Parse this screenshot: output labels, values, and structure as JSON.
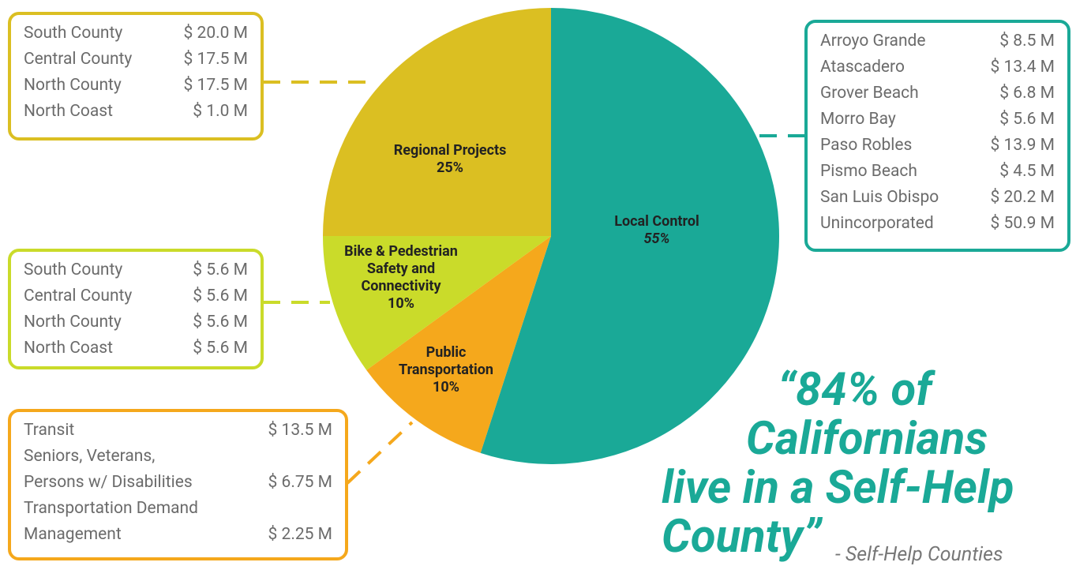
{
  "chart_data": {
    "type": "pie",
    "categories": [
      "Local Control",
      "Public Transportation",
      "Bike & Pedestrian Safety and Connectivity",
      "Regional Projects"
    ],
    "values": [
      55,
      10,
      10,
      25
    ],
    "value_labels": [
      "55%",
      "10%",
      "10%",
      "25%"
    ],
    "colors": [
      "#1aa997",
      "#f5a81c",
      "#cadb2a",
      "#dbbf22"
    ]
  },
  "breakdowns": [
    {
      "rows": [
        [
          "South County",
          "$ 20.0 M"
        ],
        [
          "Central County",
          "$ 17.5 M"
        ],
        [
          "North County",
          "$ 17.5 M"
        ],
        [
          "North Coast",
          "$ 1.0 M"
        ]
      ]
    },
    {
      "rows": [
        [
          "South County",
          "$ 5.6 M"
        ],
        [
          "Central County",
          "$ 5.6 M"
        ],
        [
          "North County",
          "$ 5.6 M"
        ],
        [
          "North Coast",
          "$ 5.6 M"
        ]
      ]
    },
    {
      "rows": [
        [
          "Transit",
          "$ 13.5 M"
        ],
        [
          "Seniors, Veterans,"
        ],
        [
          "Persons w/ Disabilities",
          "$ 6.75 M"
        ],
        [
          "Transportation Demand"
        ],
        [
          "Management",
          "$ 2.25 M"
        ]
      ]
    },
    {
      "rows": [
        [
          "Arroyo Grande",
          "$ 8.5 M"
        ],
        [
          "Atascadero",
          "$ 13.4 M"
        ],
        [
          "Grover Beach",
          "$ 6.8 M"
        ],
        [
          "Morro Bay",
          "$ 5.6 M"
        ],
        [
          "Paso Robles",
          "$ 13.9 M"
        ],
        [
          "Pismo Beach",
          "$ 4.5 M"
        ],
        [
          "San Luis Obispo",
          "$ 20.2 M"
        ],
        [
          "Unincorporated",
          "$ 50.9 M"
        ]
      ]
    }
  ],
  "quote": {
    "lines": [
      "“84% of",
      "Californians",
      "live in a Self-Help",
      "County”"
    ],
    "attribution": "- Self-Help Counties"
  }
}
